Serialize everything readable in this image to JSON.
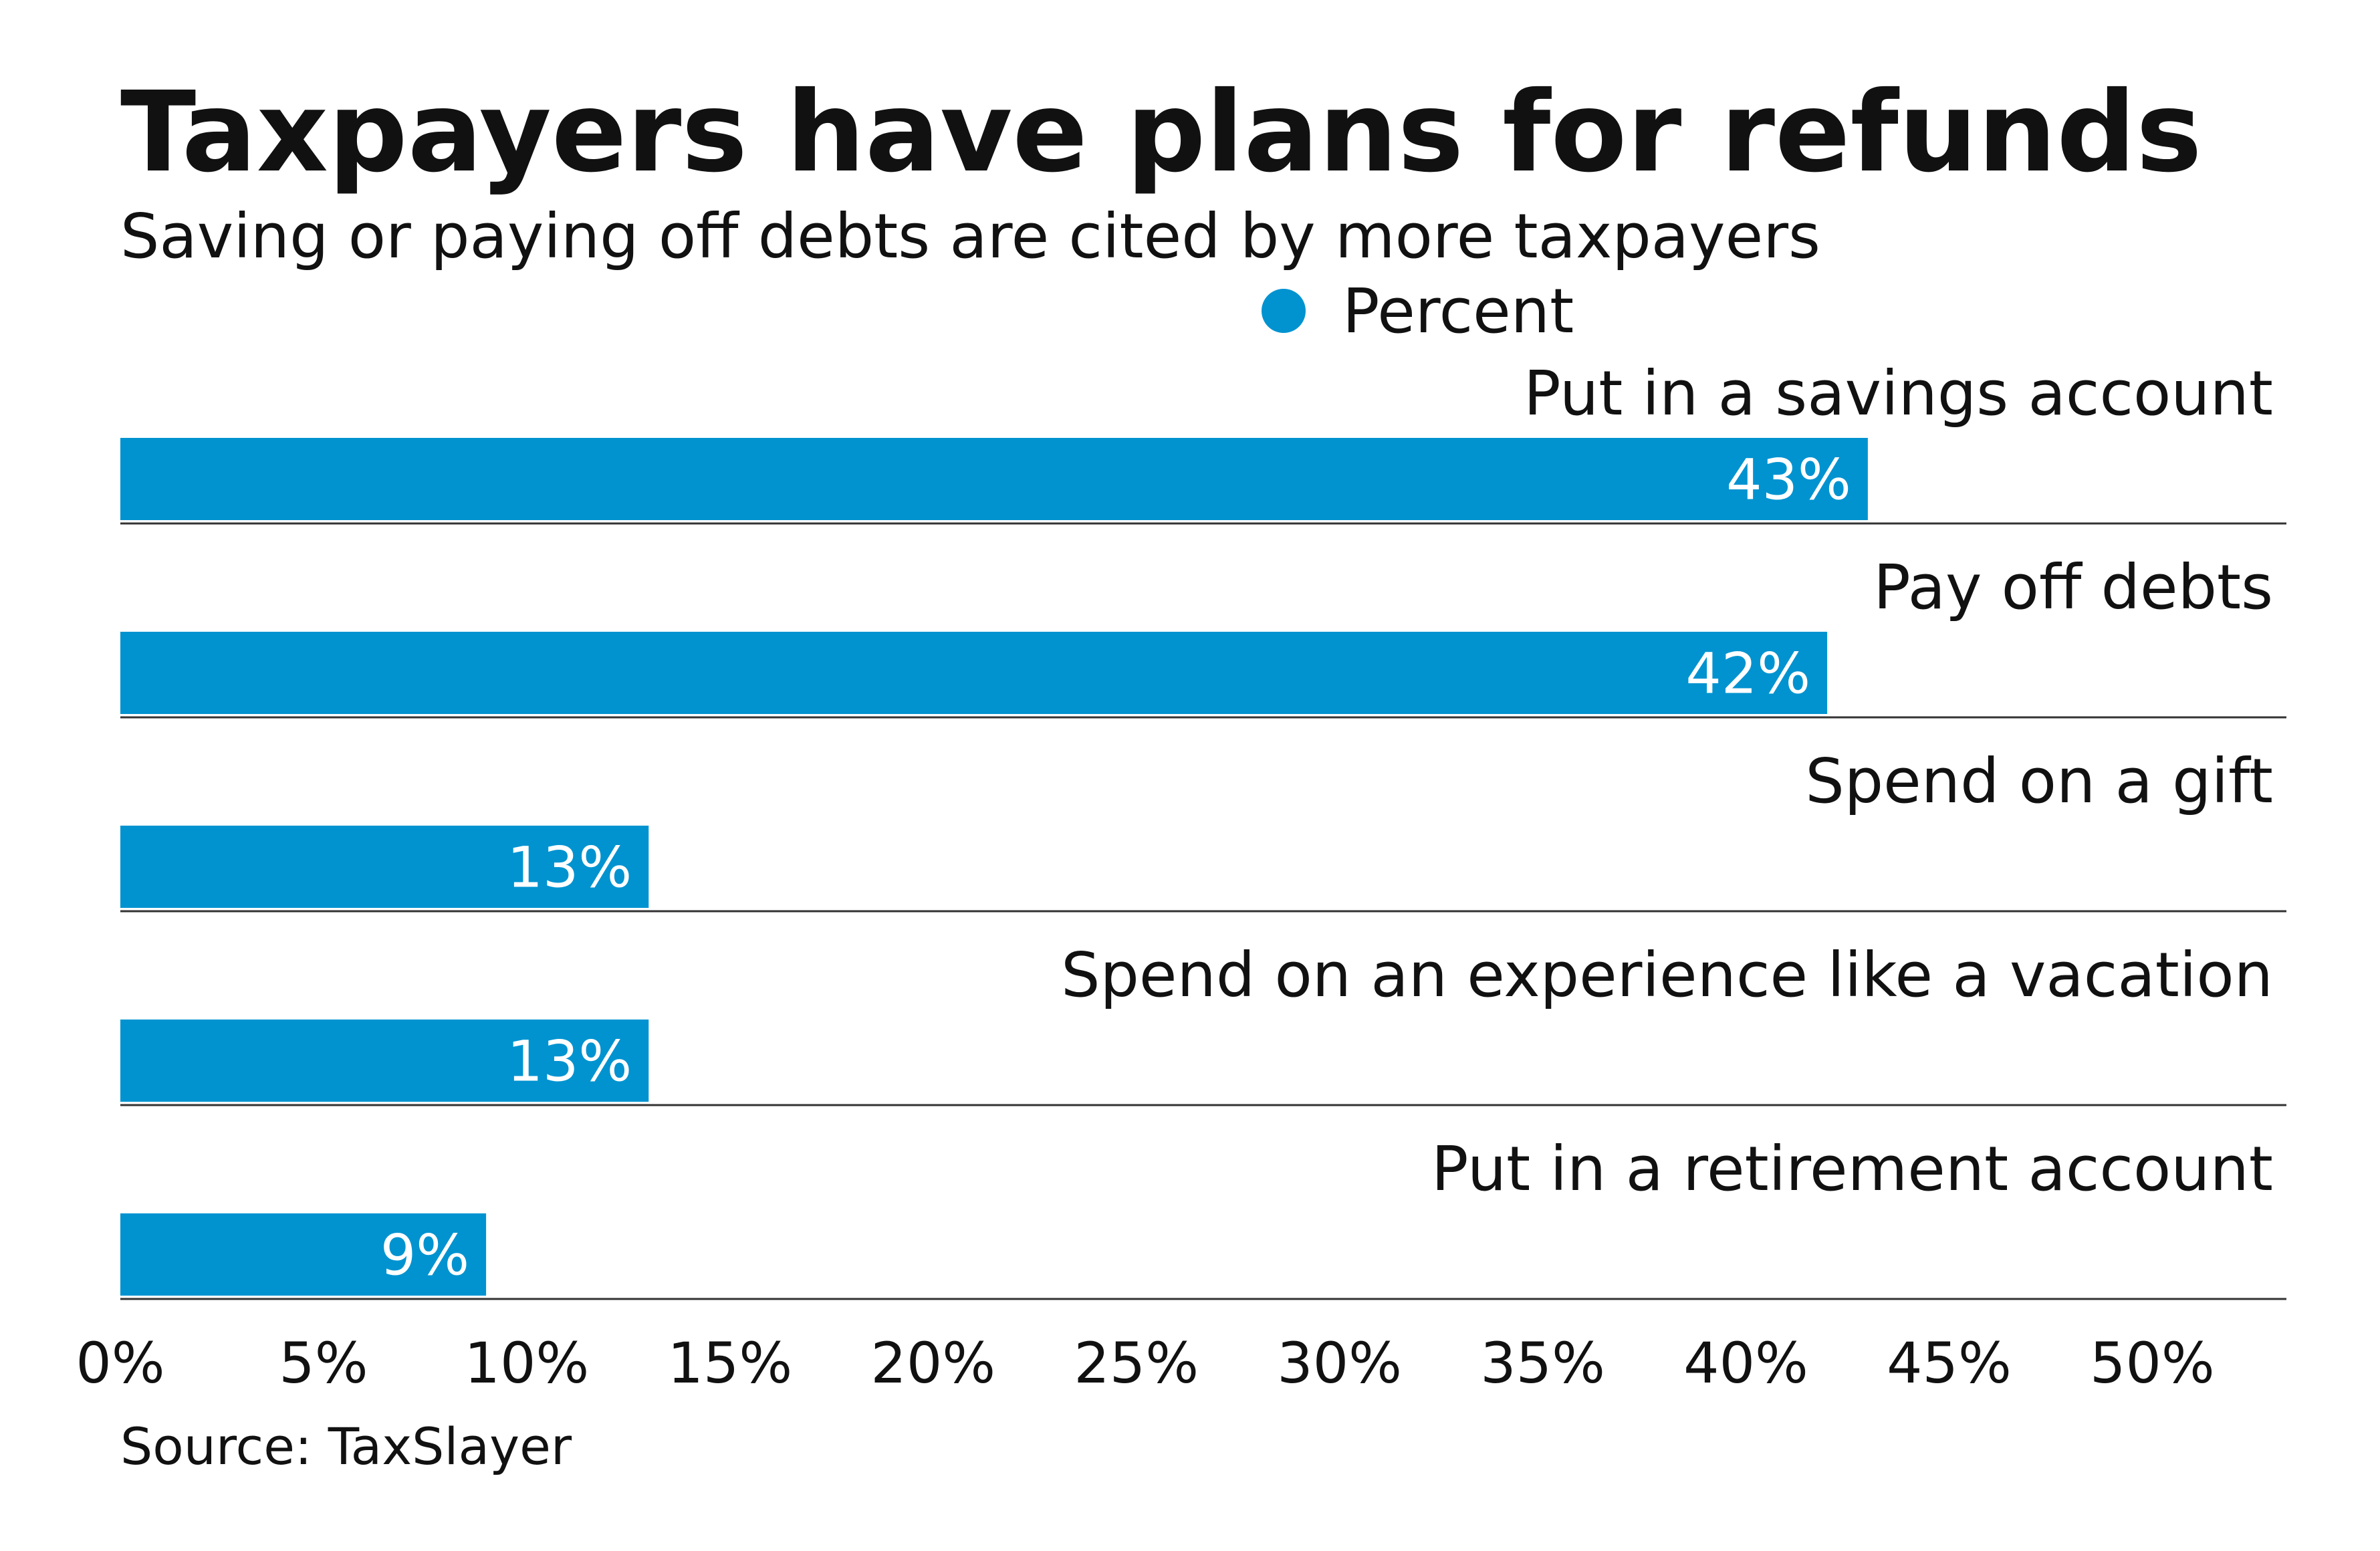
{
  "chart_data": {
    "type": "bar",
    "orientation": "horizontal",
    "title": "Taxpayers have plans for refunds",
    "subtitle": "Saving or paying off debts are cited by more taxpayers",
    "legend": {
      "label": "Percent",
      "position": "top"
    },
    "categories": [
      "Put in a savings account",
      "Pay off debts",
      "Spend on a gift",
      "Spend on an experience like a vacation",
      "Put in a retirement account"
    ],
    "series": [
      {
        "name": "Percent",
        "values": [
          43,
          42,
          13,
          13,
          9
        ]
      }
    ],
    "value_labels": [
      "43%",
      "42%",
      "13%",
      "13%",
      "9%"
    ],
    "xlim": [
      0,
      53.3
    ],
    "xticks": [
      0,
      5,
      10,
      15,
      20,
      25,
      30,
      35,
      40,
      45,
      50
    ],
    "xtick_labels": [
      "0%",
      "5%",
      "10%",
      "15%",
      "20%",
      "25%",
      "30%",
      "35%",
      "40%",
      "45%",
      "50%"
    ],
    "grid": false,
    "source": "Source: TaxSlayer",
    "colors": {
      "bar": "#0093d0",
      "separator": "#333333",
      "text": "#111111"
    }
  }
}
